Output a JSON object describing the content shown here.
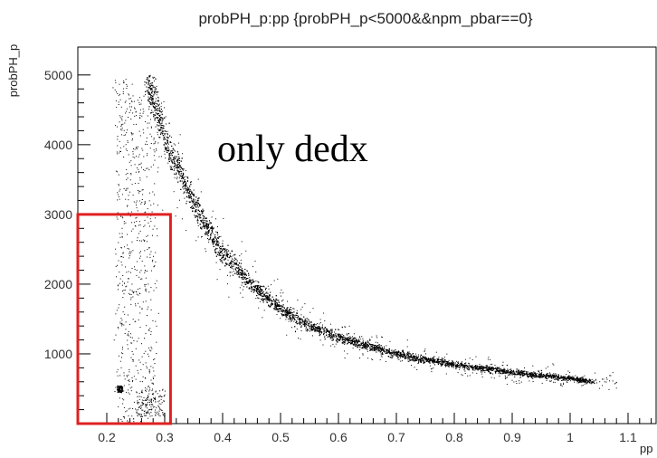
{
  "chart_data": {
    "type": "scatter",
    "title": "probPH_p:pp {probPH_p<5000&&npm_pbar==0}",
    "xlabel": "pp",
    "ylabel": "probPH_p",
    "xlim": [
      0.15,
      1.15
    ],
    "ylim": [
      0,
      5400
    ],
    "x_ticks": [
      0.2,
      0.3,
      0.4,
      0.5,
      0.6,
      0.7,
      0.8,
      0.9,
      1,
      1.1
    ],
    "x_tick_labels": [
      "0.2",
      "0.3",
      "0.4",
      "0.5",
      "0.6",
      "0.7",
      "0.8",
      "0.9",
      "1",
      "1.1"
    ],
    "y_ticks": [
      1000,
      2000,
      3000,
      4000,
      5000
    ],
    "y_tick_labels": [
      "1000",
      "2000",
      "3000",
      "4000",
      "5000"
    ],
    "grid": false,
    "annotation": "only dedx",
    "highlight_box": {
      "x_range": [
        0.15,
        0.31
      ],
      "y_range": [
        0,
        3000
      ],
      "color": "#e02020"
    },
    "series": [
      {
        "band_centerline": {
          "x": [
            0.27,
            0.3,
            0.35,
            0.4,
            0.45,
            0.5,
            0.55,
            0.6,
            0.7,
            0.8,
            0.9,
            1.0,
            1.04
          ],
          "y": [
            4950,
            4100,
            3150,
            2450,
            2000,
            1650,
            1400,
            1250,
            1000,
            850,
            740,
            650,
            600
          ]
        },
        "low_momentum_cluster": {
          "x": [
            0.215,
            0.235
          ],
          "y": [
            450,
            550
          ]
        },
        "scatter_region": {
          "x": [
            0.2,
            0.3
          ],
          "y": [
            0,
            5000
          ]
        }
      }
    ]
  }
}
